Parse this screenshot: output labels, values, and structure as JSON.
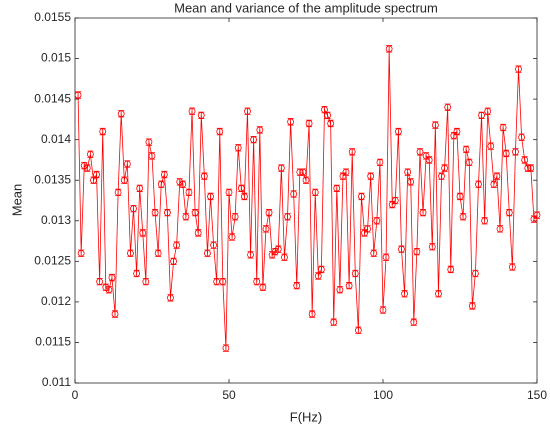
{
  "chart_data": {
    "type": "line",
    "title": "Mean and variance of the amplitude spectrum",
    "x_label": "F(Hz)",
    "y_label": "Mean",
    "x": [
      1,
      2,
      3,
      4,
      5,
      6,
      7,
      8,
      9,
      10,
      11,
      12,
      13,
      14,
      15,
      16,
      17,
      18,
      19,
      20,
      21,
      22,
      23,
      24,
      25,
      26,
      27,
      28,
      29,
      30,
      31,
      32,
      33,
      34,
      35,
      36,
      37,
      38,
      39,
      40,
      41,
      42,
      43,
      44,
      45,
      46,
      47,
      48,
      49,
      50,
      51,
      52,
      53,
      54,
      55,
      56,
      57,
      58,
      59,
      60,
      61,
      62,
      63,
      64,
      65,
      66,
      67,
      68,
      69,
      70,
      71,
      72,
      73,
      74,
      75,
      76,
      77,
      78,
      79,
      80,
      81,
      82,
      83,
      84,
      85,
      86,
      87,
      88,
      89,
      90,
      91,
      92,
      93,
      94,
      95,
      96,
      97,
      98,
      99,
      100,
      101,
      102,
      103,
      104,
      105,
      106,
      107,
      108,
      109,
      110,
      111,
      112,
      113,
      114,
      115,
      116,
      117,
      118,
      119,
      120,
      121,
      122,
      123,
      124,
      125,
      126,
      127,
      128,
      129,
      130,
      131,
      132,
      133,
      134,
      135,
      136,
      137,
      138,
      139,
      140,
      141,
      142,
      143,
      144,
      145,
      146,
      147,
      148,
      149,
      150
    ],
    "series": [
      {
        "color": "#ff0000",
        "error": 4e-05,
        "values": [
          0.01455,
          0.0126,
          0.01368,
          0.01365,
          0.01382,
          0.0135,
          0.01357,
          0.01225,
          0.0141,
          0.01218,
          0.01215,
          0.0123,
          0.01185,
          0.01335,
          0.01432,
          0.0135,
          0.0137,
          0.0126,
          0.01315,
          0.01235,
          0.0134,
          0.01285,
          0.01225,
          0.01397,
          0.0138,
          0.0131,
          0.0126,
          0.01345,
          0.01357,
          0.0131,
          0.01205,
          0.0125,
          0.0127,
          0.01348,
          0.01345,
          0.01305,
          0.01335,
          0.01435,
          0.0131,
          0.01285,
          0.0143,
          0.01355,
          0.0126,
          0.0133,
          0.0127,
          0.01225,
          0.0141,
          0.01225,
          0.01143,
          0.01335,
          0.0128,
          0.01305,
          0.0139,
          0.0134,
          0.0133,
          0.01435,
          0.01258,
          0.014,
          0.01225,
          0.01412,
          0.01218,
          0.0129,
          0.0131,
          0.01258,
          0.01262,
          0.01265,
          0.01365,
          0.01255,
          0.01305,
          0.01422,
          0.01333,
          0.0122,
          0.0136,
          0.0136,
          0.0135,
          0.0142,
          0.01185,
          0.01335,
          0.01232,
          0.0124,
          0.01437,
          0.0143,
          0.0142,
          0.01175,
          0.0134,
          0.01215,
          0.01355,
          0.0136,
          0.0122,
          0.01385,
          0.01235,
          0.01165,
          0.0133,
          0.01285,
          0.0129,
          0.01355,
          0.0126,
          0.013,
          0.01372,
          0.0119,
          0.01255,
          0.01512,
          0.0132,
          0.01325,
          0.0141,
          0.01265,
          0.0121,
          0.0136,
          0.01348,
          0.01175,
          0.01262,
          0.01385,
          0.0131,
          0.0138,
          0.01375,
          0.01268,
          0.01418,
          0.0121,
          0.01355,
          0.01365,
          0.0144,
          0.0124,
          0.01405,
          0.0141,
          0.0133,
          0.01305,
          0.01388,
          0.01372,
          0.01195,
          0.01235,
          0.01345,
          0.0143,
          0.013,
          0.01435,
          0.01392,
          0.01345,
          0.01355,
          0.0129,
          0.01415,
          0.01383,
          0.0131,
          0.01243,
          0.01385,
          0.01487,
          0.01403,
          0.01375,
          0.01365,
          0.01365,
          0.01302,
          0.01307
        ]
      }
    ],
    "xlim": [
      0,
      150
    ],
    "xticks": [
      0,
      50,
      100,
      150
    ],
    "ylim": [
      0.011,
      0.0155
    ],
    "yticks": [
      0.011,
      0.0115,
      0.012,
      0.0125,
      0.013,
      0.0135,
      0.014,
      0.0145,
      0.015,
      0.0155
    ]
  }
}
